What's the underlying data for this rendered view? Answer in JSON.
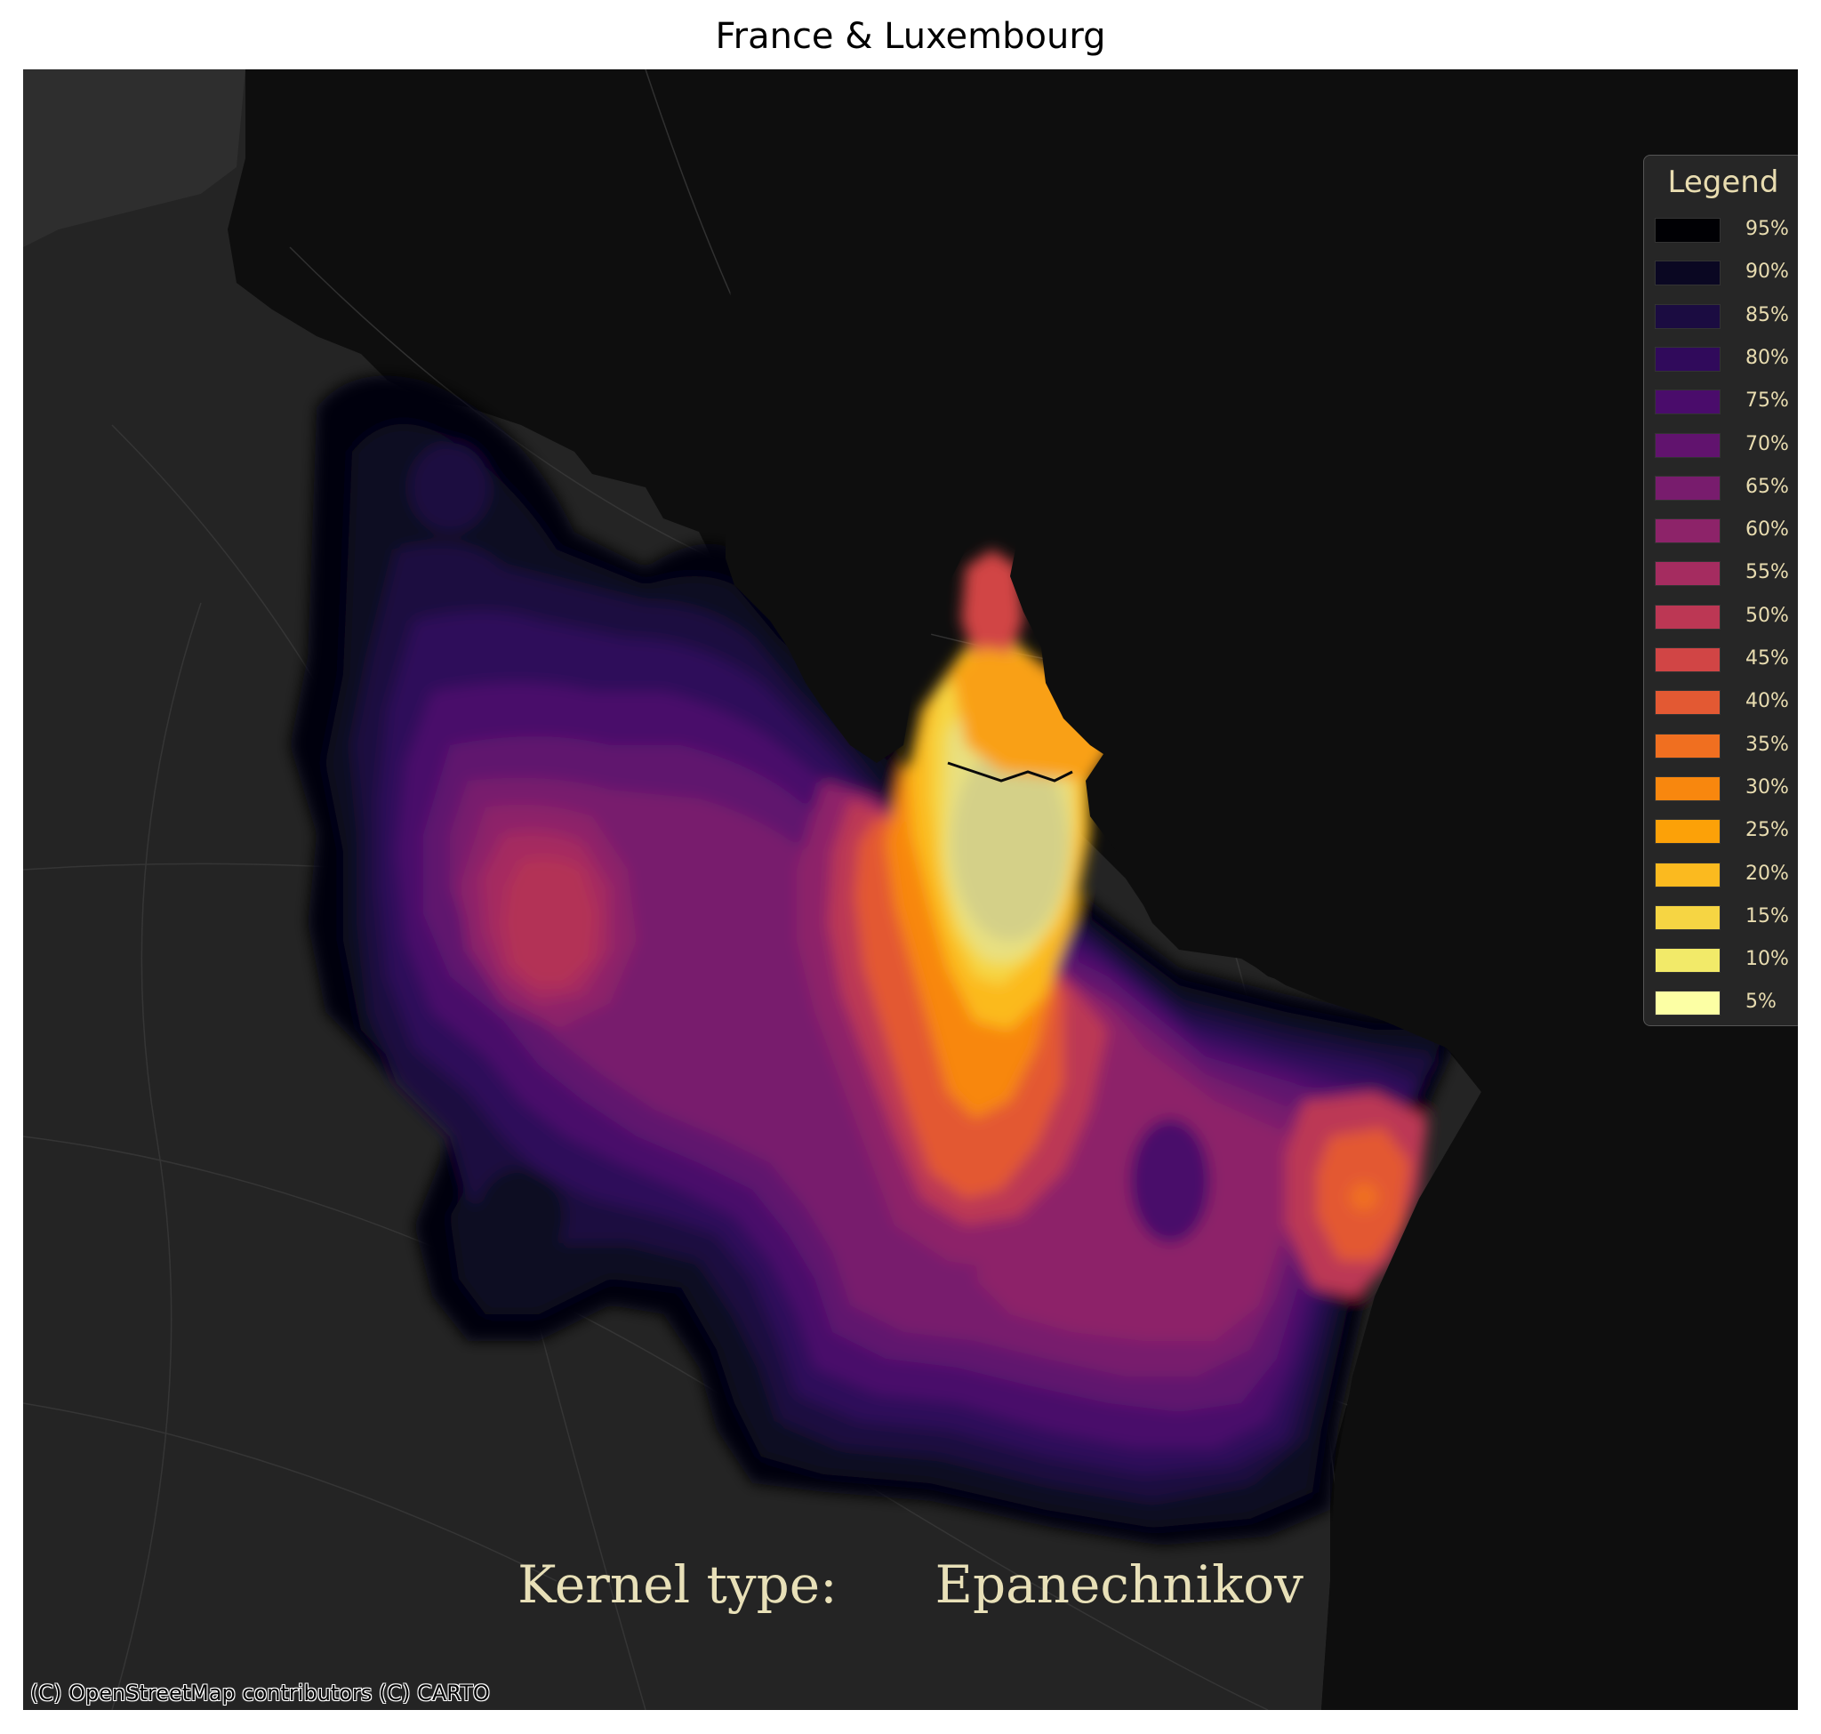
{
  "title": "France & Luxembourg",
  "legend": {
    "title": "Legend",
    "items": [
      {
        "label": "95%",
        "color": "#000004"
      },
      {
        "label": "90%",
        "color": "#0a0722"
      },
      {
        "label": "85%",
        "color": "#1b0c41"
      },
      {
        "label": "80%",
        "color": "#300a5b"
      },
      {
        "label": "75%",
        "color": "#4a0c6b"
      },
      {
        "label": "70%",
        "color": "#61136e"
      },
      {
        "label": "65%",
        "color": "#781c6d"
      },
      {
        "label": "60%",
        "color": "#8d2369"
      },
      {
        "label": "55%",
        "color": "#a52c60"
      },
      {
        "label": "50%",
        "color": "#bc3754"
      },
      {
        "label": "45%",
        "color": "#d14545"
      },
      {
        "label": "40%",
        "color": "#e35933"
      },
      {
        "label": "35%",
        "color": "#f06f20"
      },
      {
        "label": "30%",
        "color": "#f8870e"
      },
      {
        "label": "25%",
        "color": "#fca108"
      },
      {
        "label": "20%",
        "color": "#fbba1f"
      },
      {
        "label": "15%",
        "color": "#f6d543"
      },
      {
        "label": "10%",
        "color": "#f2ea69"
      },
      {
        "label": "5%",
        "color": "#fcffa4"
      }
    ]
  },
  "annotation": {
    "label": "Kernel type:",
    "value": "Epanechnikov"
  },
  "attribution": "(C) OpenStreetMap contributors (C) CARTO"
}
